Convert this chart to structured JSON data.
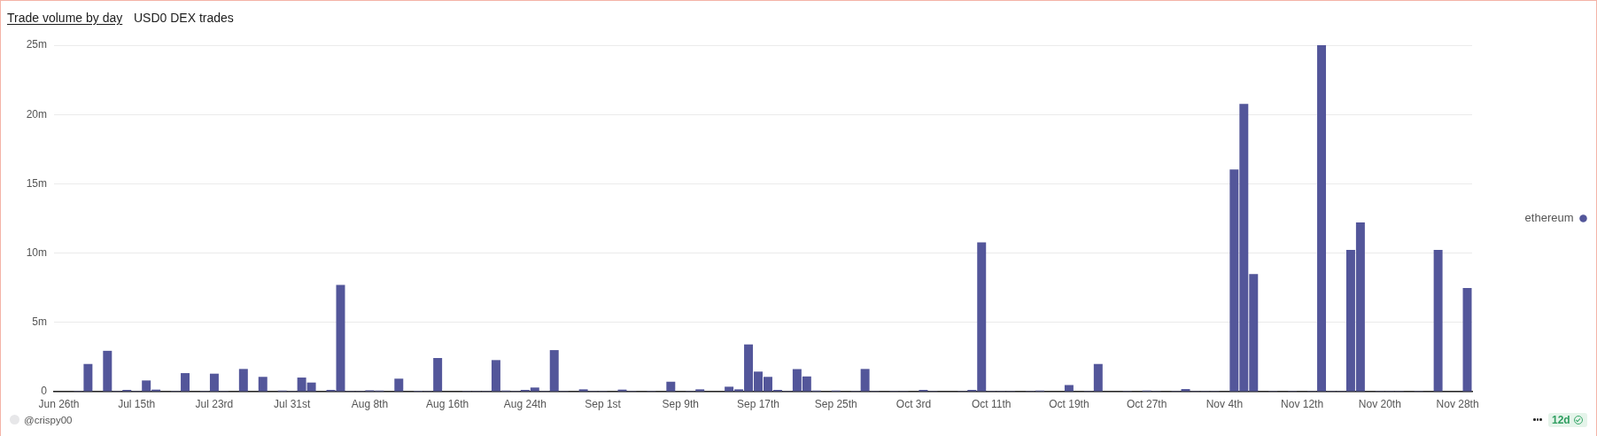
{
  "chart_data": {
    "type": "bar",
    "title": "Trade volume by day",
    "subtitle": "USD0 DEX trades",
    "categories": [
      "Jun 26th",
      null,
      null,
      null,
      null,
      null,
      null,
      null,
      "Jul 15th",
      null,
      null,
      null,
      null,
      null,
      null,
      null,
      "Jul 23rd",
      null,
      null,
      null,
      null,
      null,
      null,
      null,
      "Jul 31st",
      null,
      null,
      null,
      null,
      null,
      null,
      null,
      "Aug 8th",
      null,
      null,
      null,
      null,
      null,
      null,
      null,
      "Aug 16th",
      null,
      null,
      null,
      null,
      null,
      null,
      null,
      "Aug 24th",
      null,
      null,
      null,
      null,
      null,
      null,
      null,
      "Sep 1st",
      null,
      null,
      null,
      null,
      null,
      null,
      null,
      "Sep 9th",
      null,
      null,
      null,
      null,
      null,
      null,
      null,
      "Sep 17th",
      null,
      null,
      null,
      null,
      null,
      null,
      null,
      "Sep 25th",
      null,
      null,
      null,
      null,
      null,
      null,
      null,
      "Oct 3rd",
      null,
      null,
      null,
      null,
      null,
      null,
      null,
      "Oct 11th",
      null,
      null,
      null,
      null,
      null,
      null,
      null,
      "Oct 19th",
      null,
      null,
      null,
      null,
      null,
      null,
      null,
      "Oct 27th",
      null,
      null,
      null,
      null,
      null,
      null,
      null,
      "Nov 4th",
      null,
      null,
      null,
      null,
      null,
      null,
      null,
      "Nov 12th",
      null,
      null,
      null,
      null,
      null,
      null,
      null,
      "Nov 20th",
      null,
      null,
      null,
      null,
      null,
      null,
      null,
      "Nov 28th",
      null
    ],
    "series": [
      {
        "name": "ethereum",
        "color": "#53569a",
        "values": [
          null,
          null,
          0.05,
          2.0,
          null,
          2.95,
          0.05,
          0.13,
          0.05,
          0.81,
          0.15,
          null,
          0.05,
          1.34,
          null,
          0.05,
          1.3,
          0.05,
          null,
          1.64,
          null,
          1.07,
          null,
          0.08,
          0.05,
          1.02,
          0.66,
          null,
          0.13,
          7.7,
          0.05,
          0.05,
          0.1,
          0.08,
          null,
          0.94,
          null,
          0.06,
          0.05,
          2.43,
          null,
          null,
          0.05,
          0.05,
          0.05,
          2.28,
          0.08,
          0.05,
          0.13,
          0.3,
          0.05,
          3.0,
          0.05,
          null,
          0.17,
          0.05,
          0.05,
          null,
          0.15,
          0.05,
          null,
          0.05,
          null,
          0.72,
          null,
          0.05,
          0.17,
          null,
          null,
          0.36,
          0.17,
          3.41,
          1.45,
          1.07,
          0.13,
          0.05,
          1.63,
          1.1,
          0.08,
          null,
          0.08,
          null,
          0.05,
          1.64,
          0.05,
          null,
          0.05,
          0.05,
          null,
          0.13,
          0.05,
          null,
          null,
          0.05,
          0.13,
          10.77,
          0.05,
          0.05,
          0.05,
          null,
          0.05,
          0.08,
          null,
          null,
          0.48,
          null,
          0.05,
          2.0,
          null,
          null,
          0.05,
          null,
          0.08,
          0.05,
          null,
          0.05,
          0.19,
          0.05,
          0.05,
          0.05,
          null,
          16.03,
          20.77,
          8.49,
          null,
          0.05,
          null,
          0.05,
          null,
          0.05,
          25.0,
          0.05,
          0.05,
          10.23,
          12.22,
          null,
          0.05,
          0.05,
          0.05,
          null,
          0.05,
          null,
          10.23,
          null,
          null,
          7.48
        ]
      }
    ],
    "ylim": [
      0,
      25
    ],
    "yticks": [
      0,
      {
        "value": 5,
        "label": "5m"
      },
      {
        "value": 10,
        "label": "10m"
      },
      {
        "value": 15,
        "label": "15m"
      },
      {
        "value": 20,
        "label": "20m"
      },
      {
        "value": 25,
        "label": "25m"
      }
    ],
    "grid": "y",
    "legend": "right",
    "annotations": [
      "@crispy00",
      "12d"
    ]
  }
}
